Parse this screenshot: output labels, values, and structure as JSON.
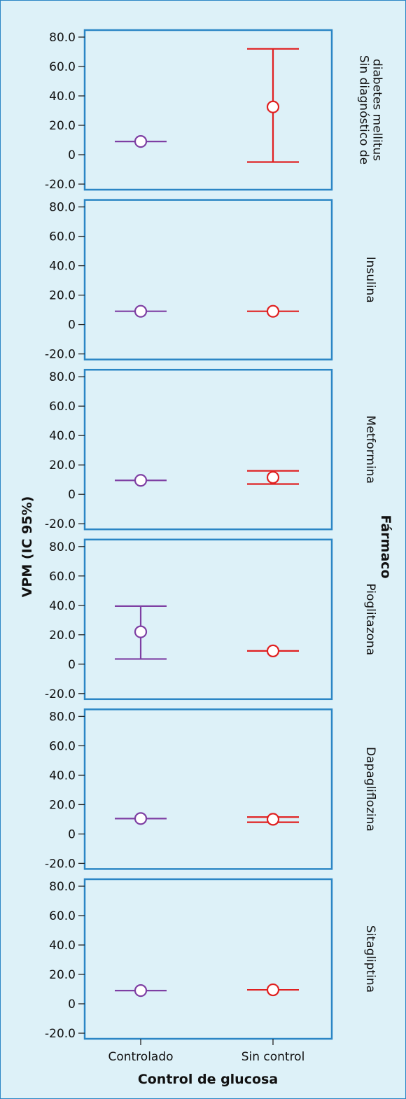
{
  "chart_data": {
    "type": "errorbar",
    "xlabel": "Control de glucosa",
    "ylabel": "VPM (IC 95%)",
    "facet_title": "Fármaco",
    "categories": [
      "Controlado",
      "Sin control"
    ],
    "ylim": [
      -20,
      80
    ],
    "yticks": [
      "80.0",
      "60.0",
      "40.0",
      "20.0",
      "0",
      "-20.0"
    ],
    "colors": {
      "Controlado": "#7e3fa3",
      "Sin control": "#e02020",
      "panel_border": "#2b86c5",
      "background": "#ddf1f8"
    },
    "panels": [
      {
        "facet": "Sin diagnóstico de diabetes mellitus",
        "facet_lines": [
          "Sin diagnóstico de",
          "diabetes mellitus"
        ],
        "points": [
          {
            "category": "Controlado",
            "mean": 9.0,
            "lower": 9.0,
            "upper": 9.0
          },
          {
            "category": "Sin control",
            "mean": 32.5,
            "lower": -5.0,
            "upper": 72.0
          }
        ]
      },
      {
        "facet": "Insulina",
        "facet_lines": [
          "Insulina"
        ],
        "points": [
          {
            "category": "Controlado",
            "mean": 9.0,
            "lower": 9.0,
            "upper": 9.0
          },
          {
            "category": "Sin control",
            "mean": 9.0,
            "lower": 9.0,
            "upper": 9.0
          }
        ]
      },
      {
        "facet": "Metformina",
        "facet_lines": [
          "Metformina"
        ],
        "points": [
          {
            "category": "Controlado",
            "mean": 9.5,
            "lower": 9.5,
            "upper": 9.5
          },
          {
            "category": "Sin control",
            "mean": 11.5,
            "lower": 7.0,
            "upper": 16.0
          }
        ]
      },
      {
        "facet": "Pioglitazona",
        "facet_lines": [
          "Pioglitazona"
        ],
        "points": [
          {
            "category": "Controlado",
            "mean": 22.0,
            "lower": 3.5,
            "upper": 39.5
          },
          {
            "category": "Sin control",
            "mean": 9.0,
            "lower": 9.0,
            "upper": 9.0
          }
        ]
      },
      {
        "facet": "Dapagliflozina",
        "facet_lines": [
          "Dapagliflozina"
        ],
        "points": [
          {
            "category": "Controlado",
            "mean": 10.5,
            "lower": 10.5,
            "upper": 10.5
          },
          {
            "category": "Sin control",
            "mean": 10.0,
            "lower": 8.0,
            "upper": 11.5
          }
        ]
      },
      {
        "facet": "Sitagliptina",
        "facet_lines": [
          "Sitagliptina"
        ],
        "points": [
          {
            "category": "Controlado",
            "mean": 9.0,
            "lower": 9.0,
            "upper": 9.0
          },
          {
            "category": "Sin control",
            "mean": 9.5,
            "lower": 9.5,
            "upper": 9.5
          }
        ]
      }
    ]
  }
}
